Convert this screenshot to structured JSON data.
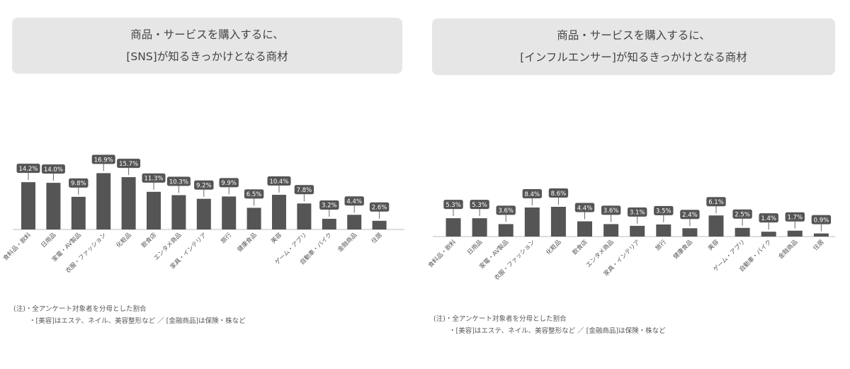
{
  "charts": [
    {
      "title_lines": [
        "商品・サービスを購入するに、",
        "[SNS]が知るきっかけとなる商材"
      ],
      "note_lines": [
        "(注)・全アンケート対象者を分母とした割合",
        "・[美容]はエステ、ネイル、美容整形など ／ [金融商品]は保険・株など"
      ]
    },
    {
      "title_lines": [
        "商品・サービスを購入するに、",
        "[インフルエンサー]が知るきっかけとなる商材"
      ],
      "note_lines": [
        "(注)・全アンケート対象者を分母とした割合",
        "・[美容]はエステ、ネイル、美容整形など ／ [金融商品]は保険・株など"
      ]
    }
  ],
  "chart_data": [
    {
      "type": "bar",
      "title": "商品・サービスを購入するに、[SNS]が知るきっかけとなる商材",
      "categories": [
        "食料品・飲料",
        "日用品",
        "家電・AV製品",
        "衣服・ファッション",
        "化粧品",
        "飲食店",
        "エンタメ商品",
        "家具・インテリア",
        "旅行",
        "健康食品",
        "美容",
        "ゲーム・アプリ",
        "自動車・バイク",
        "金融商品",
        "住居"
      ],
      "values": [
        14.2,
        14.0,
        9.8,
        16.9,
        15.7,
        11.3,
        10.3,
        9.2,
        9.9,
        6.5,
        10.4,
        7.8,
        3.2,
        4.4,
        2.6
      ],
      "value_labels": [
        "14.2%",
        "14.0%",
        "9.8%",
        "16.9%",
        "15.7%",
        "11.3%",
        "10.3%",
        "9.2%",
        "9.9%",
        "6.5%",
        "10.4%",
        "7.8%",
        "3.2%",
        "4.4%",
        "2.6%"
      ],
      "ylim": [
        0,
        17
      ],
      "grid": false,
      "bar_color": "#555555"
    },
    {
      "type": "bar",
      "title": "商品・サービスを購入するに、[インフルエンサー]が知るきっかけとなる商材",
      "categories": [
        "食料品・飲料",
        "日用品",
        "家電・AV製品",
        "衣服・ファッション",
        "化粧品",
        "飲食店",
        "エンタメ商品",
        "家具・インテリア",
        "旅行",
        "健康食品",
        "美容",
        "ゲーム・アプリ",
        "自動車・バイク",
        "金融商品",
        "住居"
      ],
      "values": [
        5.3,
        5.3,
        3.6,
        8.4,
        8.6,
        4.4,
        3.6,
        3.1,
        3.5,
        2.4,
        6.1,
        2.5,
        1.4,
        1.7,
        0.9
      ],
      "value_labels": [
        "5.3%",
        "5.3%",
        "3.6%",
        "8.4%",
        "8.6%",
        "4.4%",
        "3.6%",
        "3.1%",
        "3.5%",
        "2.4%",
        "6.1%",
        "2.5%",
        "1.4%",
        "1.7%",
        "0.9%"
      ],
      "ylim": [
        0,
        8.6
      ],
      "grid": false,
      "bar_color": "#555555"
    }
  ]
}
